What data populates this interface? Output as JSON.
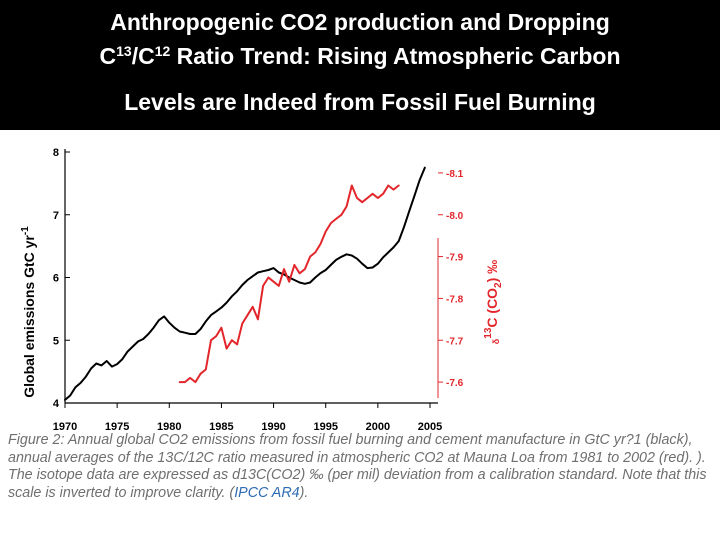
{
  "slide": {
    "title_line1": "Anthropogenic CO2 production and Dropping",
    "title_line2_a": "C",
    "title_line2_sup1": "13",
    "title_line2_b": "/C",
    "title_line2_sup2": "12",
    "title_line2_c": " Ratio Trend: Rising Atmospheric Carbon",
    "title_line3": "Levels are Indeed from Fossil Fuel Burning"
  },
  "caption": {
    "text": "Figure 2: Annual global CO2 emissions from fossil fuel burning and cement manufacture in GtC yr?1 (black), annual averages of the 13C/12C ratio measured in atmospheric CO2 at Mauna Loa from 1981 to 2002 (red). ). The isotope data are expressed as d13C(CO2) ‰ (per mil) deviation from a calibration standard. Note that this scale is inverted to improve clarity. (",
    "link": "IPCC AR4",
    "end": ")."
  },
  "chart_data": {
    "type": "line",
    "colors": {
      "emissions": "#000000",
      "isotope": "#e3262b"
    },
    "x_ticks": [
      "1970",
      "1975",
      "1980",
      "1985",
      "1990",
      "1995",
      "2000",
      "2005"
    ],
    "xlim": [
      1970,
      2005
    ],
    "left_axis": {
      "label": "Global emissions GtC yr",
      "label_sup": "-1",
      "ylim": [
        4,
        8
      ],
      "ticks": [
        "4",
        "5",
        "6",
        "7",
        "8"
      ]
    },
    "right_axis": {
      "label_prefix": "δ",
      "label_main": "13",
      "label_rest": "C (CO",
      "label_sub": "2",
      "label_end": ") ‰",
      "inverted": true,
      "ylim": [
        -8.15,
        -7.55
      ],
      "ticks": [
        "-8.1",
        "-8.0",
        "-7.9",
        "-7.8",
        "-7.7",
        "-7.6"
      ]
    },
    "series": [
      {
        "id": "emissions",
        "x": [
          1970,
          1970.5,
          1971,
          1971.5,
          1972,
          1972.5,
          1973,
          1973.5,
          1974,
          1974.5,
          1975,
          1975.5,
          1976,
          1976.5,
          1977,
          1977.5,
          1978,
          1978.5,
          1979,
          1979.5,
          1980,
          1980.5,
          1981,
          1981.5,
          1982,
          1982.5,
          1983,
          1983.5,
          1984,
          1984.5,
          1985,
          1985.5,
          1986,
          1986.5,
          1987,
          1987.5,
          1988,
          1988.5,
          1989,
          1989.5,
          1990,
          1990.5,
          1991,
          1991.5,
          1992,
          1992.5,
          1993,
          1993.5,
          1994,
          1994.5,
          1995,
          1995.5,
          1996,
          1996.5,
          1997,
          1997.5,
          1998,
          1998.5,
          1999,
          1999.5,
          2000,
          2000.5,
          2001,
          2001.5,
          2002,
          2002.5,
          2003,
          2003.5,
          2004,
          2004.5
        ],
        "values": [
          4.05,
          4.12,
          4.25,
          4.32,
          4.42,
          4.55,
          4.63,
          4.6,
          4.67,
          4.58,
          4.62,
          4.7,
          4.82,
          4.9,
          4.98,
          5.02,
          5.1,
          5.2,
          5.32,
          5.38,
          5.28,
          5.2,
          5.14,
          5.12,
          5.1,
          5.1,
          5.18,
          5.3,
          5.4,
          5.46,
          5.52,
          5.6,
          5.7,
          5.78,
          5.88,
          5.96,
          6.02,
          6.08,
          6.1,
          6.12,
          6.15,
          6.08,
          6.05,
          6.0,
          5.96,
          5.92,
          5.9,
          5.92,
          6.0,
          6.07,
          6.12,
          6.2,
          6.28,
          6.33,
          6.37,
          6.35,
          6.3,
          6.22,
          6.15,
          6.16,
          6.22,
          6.32,
          6.4,
          6.48,
          6.58,
          6.8,
          7.05,
          7.3,
          7.55,
          7.75
        ]
      },
      {
        "id": "isotope",
        "x": [
          1981,
          1981.5,
          1982,
          1982.5,
          1983,
          1983.5,
          1984,
          1984.5,
          1985,
          1985.5,
          1986,
          1986.5,
          1987,
          1987.5,
          1988,
          1988.5,
          1989,
          1989.5,
          1990,
          1990.5,
          1991,
          1991.5,
          1992,
          1992.5,
          1993,
          1993.5,
          1994,
          1994.5,
          1995,
          1995.5,
          1996,
          1996.5,
          1997,
          1997.5,
          1998,
          1998.5,
          1999,
          1999.5,
          2000,
          2000.5,
          2001,
          2001.5,
          2002
        ],
        "values": [
          -7.6,
          -7.6,
          -7.61,
          -7.6,
          -7.62,
          -7.63,
          -7.7,
          -7.71,
          -7.73,
          -7.68,
          -7.7,
          -7.69,
          -7.74,
          -7.76,
          -7.78,
          -7.75,
          -7.83,
          -7.85,
          -7.84,
          -7.83,
          -7.87,
          -7.84,
          -7.88,
          -7.86,
          -7.87,
          -7.9,
          -7.91,
          -7.93,
          -7.96,
          -7.98,
          -7.99,
          -8.0,
          -8.02,
          -8.07,
          -8.04,
          -8.03,
          -8.04,
          -8.05,
          -8.04,
          -8.05,
          -8.07,
          -8.06,
          -8.07
        ]
      }
    ]
  }
}
